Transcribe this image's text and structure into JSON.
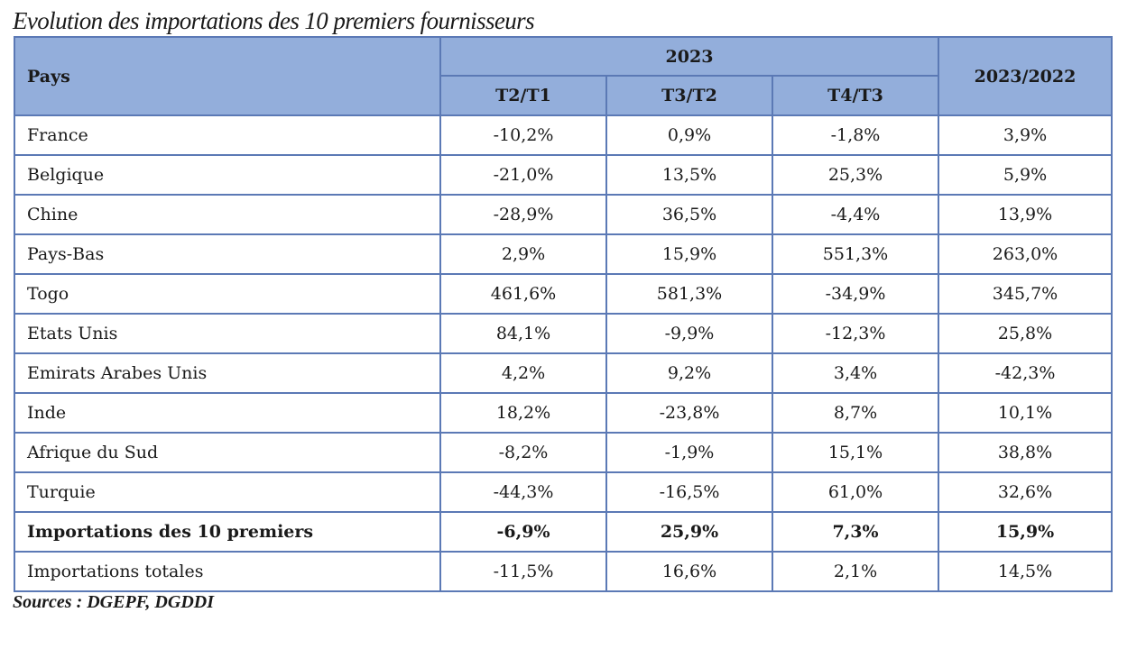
{
  "title": "Evolution des importations des 10 premiers fournisseurs",
  "table": {
    "header_pays": "Pays",
    "header_group": "2023",
    "header_sub": [
      "T2/T1",
      "T3/T2",
      "T4/T3"
    ],
    "header_annual": "2023/2022",
    "rows": [
      {
        "country": "France",
        "values": [
          "-10,2%",
          "0,9%",
          "-1,8%",
          "3,9%"
        ]
      },
      {
        "country": "Belgique",
        "values": [
          "-21,0%",
          "13,5%",
          "25,3%",
          "5,9%"
        ]
      },
      {
        "country": "Chine",
        "values": [
          "-28,9%",
          "36,5%",
          "-4,4%",
          "13,9%"
        ]
      },
      {
        "country": "Pays-Bas",
        "values": [
          "2,9%",
          "15,9%",
          "551,3%",
          "263,0%"
        ]
      },
      {
        "country": "Togo",
        "values": [
          "461,6%",
          "581,3%",
          "-34,9%",
          "345,7%"
        ]
      },
      {
        "country": "Etats Unis",
        "values": [
          "84,1%",
          "-9,9%",
          "-12,3%",
          "25,8%"
        ]
      },
      {
        "country": "Emirats Arabes Unis",
        "values": [
          "4,2%",
          "9,2%",
          "3,4%",
          "-42,3%"
        ]
      },
      {
        "country": "Inde",
        "values": [
          "18,2%",
          "-23,8%",
          "8,7%",
          "10,1%"
        ]
      },
      {
        "country": "Afrique du Sud",
        "values": [
          "-8,2%",
          "-1,9%",
          "15,1%",
          "38,8%"
        ]
      },
      {
        "country": "Turquie",
        "values": [
          "-44,3%",
          "-16,5%",
          "61,0%",
          "32,6%"
        ]
      },
      {
        "country": "Importations des 10 premiers",
        "values": [
          "-6,9%",
          "25,9%",
          "7,3%",
          "15,9%"
        ],
        "bold": true
      },
      {
        "country": "Importations totales",
        "values": [
          "-11,5%",
          "16,6%",
          "2,1%",
          "14,5%"
        ]
      }
    ]
  },
  "source": "Sources : DGEPF, DGDDI",
  "colors": {
    "header_bg": "#93aedb",
    "border": "#5b79b5"
  }
}
